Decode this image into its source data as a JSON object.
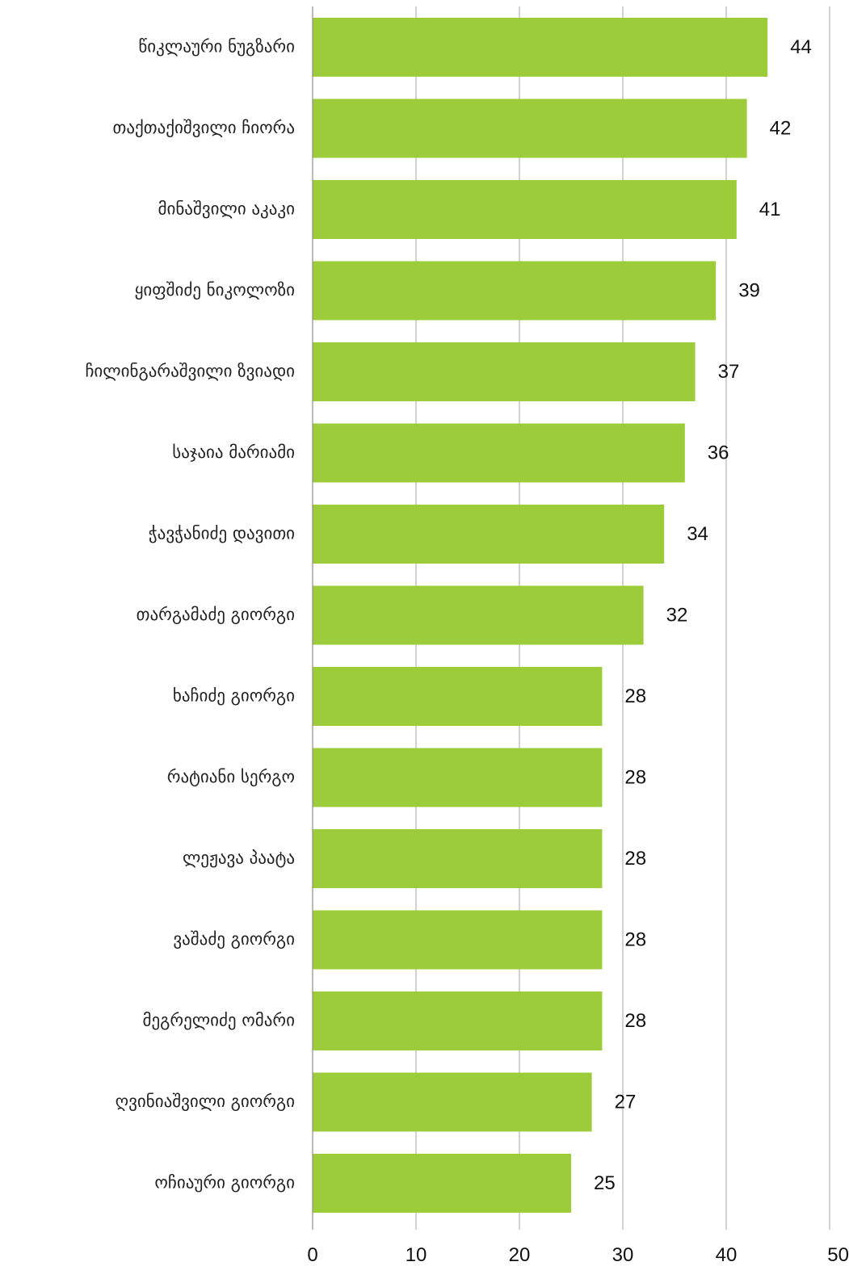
{
  "chart_data": {
    "type": "bar",
    "orientation": "horizontal",
    "title": "",
    "xlabel": "",
    "ylabel": "",
    "categories": [
      "წიკლაური ნუგზარი",
      "თაქთაქიშვილი ჩიორა",
      "მინაშვილი აკაკი",
      "ყიფშიძე ნიკოლოზი",
      "ჩილინგარაშვილი ზვიადი",
      "საჯაია მარიამი",
      "ჭავჭანიძე დავითი",
      "თარგამაძე გიორგი",
      "ხაჩიძე გიორგი",
      "რატიანი სერგო",
      "ლეჟავა პაატა",
      "ვაშაძე გიორგი",
      "მეგრელიძე ომარი",
      "ღვინიაშვილი გიორგი",
      "ოჩიაური გიორგი"
    ],
    "values": [
      44,
      42,
      41,
      39,
      37,
      36,
      34,
      32,
      28,
      28,
      28,
      28,
      28,
      27,
      25
    ],
    "value_labels": [
      "44",
      "42",
      "41",
      "39",
      "37",
      "36",
      "34",
      "32",
      "28",
      "28",
      "28",
      "28",
      "28",
      "27",
      "25"
    ],
    "xlim": [
      0,
      50
    ],
    "x_ticks": [
      0,
      10,
      20,
      30,
      40,
      50
    ],
    "x_tick_labels": [
      "0",
      "10",
      "20",
      "30",
      "40",
      "50"
    ],
    "grid": "vertical",
    "legend": "none",
    "colors": {
      "bar": "#9ccc39",
      "grid": "#b3b3b3",
      "axis": "#8c8c8c"
    }
  }
}
